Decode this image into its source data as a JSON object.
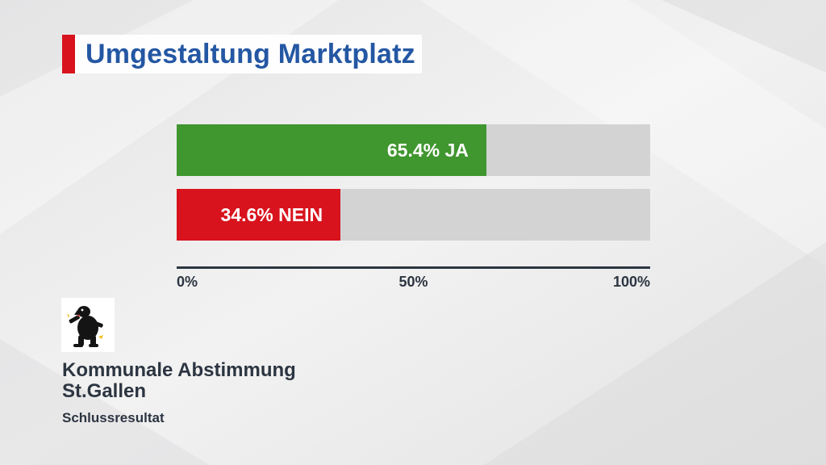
{
  "title": "Umgestaltung Marktplatz",
  "colors": {
    "ja": "#40962f",
    "nein": "#d8131d",
    "track": "#d3d3d4",
    "title": "#2457a3",
    "text": "#2c3541"
  },
  "chart_data": {
    "type": "bar",
    "orientation": "horizontal",
    "categories": [
      "JA",
      "NEIN"
    ],
    "values": [
      65.4,
      34.6
    ],
    "data_labels": [
      "65.4% JA",
      "34.6% NEIN"
    ],
    "xlim": [
      0,
      100
    ],
    "tick_labels": [
      "0%",
      "50%",
      "100%"
    ],
    "tick_values": [
      0,
      50,
      100
    ],
    "grid": false,
    "legend": "none"
  },
  "footer": {
    "logo_icon": "bear-coat-of-arms-icon",
    "title_line1": "Kommunale Abstimmung",
    "title_line2": "St.Gallen",
    "subtitle": "Schlussresultat"
  }
}
